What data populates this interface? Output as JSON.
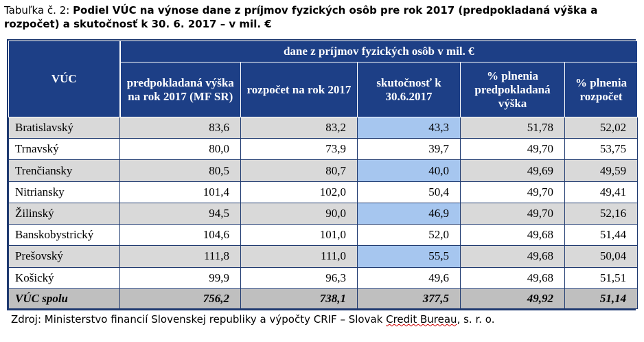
{
  "caption": {
    "prefix": "Tabuľka č. 2: ",
    "title": "Podiel VÚC na výnose dane z príjmov fyzických osôb pre rok 2017 (predpokladaná výška a rozpočet) a skutočnosť k 30. 6. 2017 – v mil. €"
  },
  "table": {
    "row_header": "VÚC",
    "group_header": "dane z príjmov fyzických osôb v mil. €",
    "columns": [
      "predpokladaná výška na rok 2017 (MF SR)",
      "rozpočet na rok 2017",
      "skutočnosť k 30.6.2017",
      "% plnenia predpokladaná výška",
      "% plnenia rozpočet"
    ],
    "rows": [
      {
        "name": "Bratislavský",
        "values": [
          "83,6",
          "83,2",
          "43,3",
          "51,78",
          "52,02"
        ]
      },
      {
        "name": "Trnavský",
        "values": [
          "80,0",
          "73,9",
          "39,7",
          "49,70",
          "53,75"
        ]
      },
      {
        "name": "Trenčiansky",
        "values": [
          "80,5",
          "80,7",
          "40,0",
          "49,69",
          "49,59"
        ]
      },
      {
        "name": "Nitriansky",
        "values": [
          "101,4",
          "102,0",
          "50,4",
          "49,70",
          "49,41"
        ]
      },
      {
        "name": "Žilinský",
        "values": [
          "94,5",
          "90,0",
          "46,9",
          "49,70",
          "52,16"
        ]
      },
      {
        "name": "Banskobystrický",
        "values": [
          "104,6",
          "101,0",
          "52,0",
          "49,68",
          "51,44"
        ]
      },
      {
        "name": "Prešovský",
        "values": [
          "111,8",
          "111,0",
          "55,5",
          "49,68",
          "50,04"
        ]
      },
      {
        "name": "Košický",
        "values": [
          "99,9",
          "96,3",
          "49,6",
          "49,68",
          "51,51"
        ]
      }
    ],
    "total": {
      "name": "VÚC spolu",
      "values": [
        "756,2",
        "738,1",
        "377,5",
        "49,92",
        "51,14"
      ]
    }
  },
  "source": {
    "before": "Zdroj: Ministerstvo financií Slovenskej republiky a výpočty CRIF – Slovak ",
    "underlined": "Credit Bureau",
    "after": ", s. r. o."
  },
  "colors": {
    "header_bg": "#1d3f86",
    "row_gray": "#d9d9d9",
    "highlight_blue": "#a6c6ef",
    "total_bg": "#bfbfbf"
  }
}
